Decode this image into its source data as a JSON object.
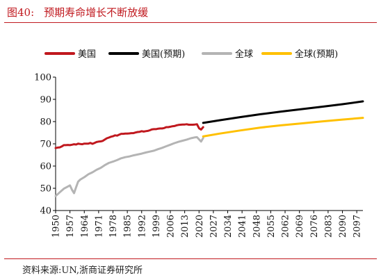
{
  "header": {
    "figure_label": "图40:",
    "title": "预期寿命增长不断放缓"
  },
  "source": "资料来源:UN,浙商证券研究所",
  "colors": {
    "us": "#c0181e",
    "us_proj": "#000000",
    "world": "#b4b4b4",
    "world_proj": "#ffc000",
    "accent": "#c0181e"
  },
  "chart_data": {
    "type": "line",
    "title": "预期寿命增长不断放缓",
    "xlabel": "",
    "ylabel": "",
    "ylim": [
      40,
      100
    ],
    "yticks": [
      40,
      50,
      60,
      70,
      80,
      90,
      100
    ],
    "xlim": [
      1950,
      2100
    ],
    "xticks": [
      1950,
      1957,
      1964,
      1971,
      1978,
      1985,
      1992,
      1999,
      2006,
      2013,
      2020,
      2027,
      2034,
      2041,
      2048,
      2055,
      2062,
      2069,
      2076,
      2083,
      2090,
      2097
    ],
    "grid": false,
    "legend_position": "top",
    "series": [
      {
        "name": "美国",
        "color": "#c0181e",
        "x": [
          1950,
          1951,
          1952,
          1953,
          1954,
          1955,
          1956,
          1957,
          1958,
          1959,
          1960,
          1961,
          1962,
          1963,
          1964,
          1965,
          1966,
          1967,
          1968,
          1969,
          1970,
          1971,
          1972,
          1973,
          1974,
          1975,
          1976,
          1977,
          1978,
          1979,
          1980,
          1981,
          1982,
          1983,
          1984,
          1985,
          1986,
          1987,
          1988,
          1989,
          1990,
          1991,
          1992,
          1993,
          1994,
          1995,
          1996,
          1997,
          1998,
          1999,
          2000,
          2001,
          2002,
          2003,
          2004,
          2005,
          2006,
          2007,
          2008,
          2009,
          2010,
          2011,
          2012,
          2013,
          2014,
          2015,
          2016,
          2017,
          2018,
          2019,
          2020,
          2021,
          2022
        ],
        "y": [
          68.1,
          68.3,
          68.4,
          68.8,
          69.4,
          69.4,
          69.5,
          69.4,
          69.6,
          69.8,
          69.7,
          70.1,
          69.9,
          69.8,
          70.1,
          70.1,
          70.1,
          70.4,
          70.0,
          70.4,
          70.8,
          71.0,
          71.1,
          71.3,
          71.9,
          72.5,
          72.8,
          73.2,
          73.4,
          73.8,
          73.7,
          74.1,
          74.5,
          74.5,
          74.6,
          74.6,
          74.7,
          74.8,
          74.8,
          75.1,
          75.3,
          75.4,
          75.7,
          75.5,
          75.7,
          75.8,
          76.1,
          76.5,
          76.6,
          76.6,
          76.8,
          76.9,
          76.9,
          77.1,
          77.5,
          77.5,
          77.7,
          77.9,
          78.0,
          78.3,
          78.5,
          78.6,
          78.7,
          78.7,
          78.8,
          78.6,
          78.6,
          78.6,
          78.7,
          78.8,
          77.0,
          76.4,
          77.5
        ]
      },
      {
        "name": "美国(预期)",
        "color": "#000000",
        "x": [
          2022,
          2030,
          2040,
          2050,
          2060,
          2070,
          2080,
          2090,
          2100
        ],
        "y": [
          79.4,
          80.6,
          82.0,
          83.3,
          84.5,
          85.6,
          86.7,
          87.8,
          89.1
        ]
      },
      {
        "name": "全球",
        "color": "#b4b4b4",
        "x": [
          1950,
          1952,
          1954,
          1956,
          1957,
          1958,
          1959,
          1960,
          1961,
          1962,
          1964,
          1966,
          1968,
          1970,
          1972,
          1974,
          1976,
          1978,
          1980,
          1982,
          1984,
          1986,
          1988,
          1990,
          1992,
          1994,
          1996,
          1998,
          2000,
          2002,
          2004,
          2006,
          2008,
          2010,
          2012,
          2014,
          2016,
          2018,
          2019,
          2020,
          2021,
          2022
        ],
        "y": [
          46.5,
          48.2,
          49.8,
          50.8,
          51.3,
          49.3,
          47.8,
          50.5,
          53.0,
          53.9,
          55.0,
          56.3,
          57.2,
          58.3,
          59.2,
          60.4,
          61.4,
          62.0,
          62.7,
          63.5,
          64.0,
          64.3,
          64.8,
          65.2,
          65.6,
          66.1,
          66.5,
          66.9,
          67.6,
          68.2,
          68.9,
          69.6,
          70.3,
          70.9,
          71.4,
          71.9,
          72.5,
          72.9,
          73.0,
          72.0,
          71.0,
          72.6
        ]
      },
      {
        "name": "全球(预期)",
        "color": "#ffc000",
        "x": [
          2022,
          2030,
          2040,
          2050,
          2060,
          2070,
          2080,
          2090,
          2100
        ],
        "y": [
          73.3,
          74.6,
          76.0,
          77.3,
          78.3,
          79.2,
          80.1,
          80.9,
          81.7
        ]
      }
    ]
  }
}
